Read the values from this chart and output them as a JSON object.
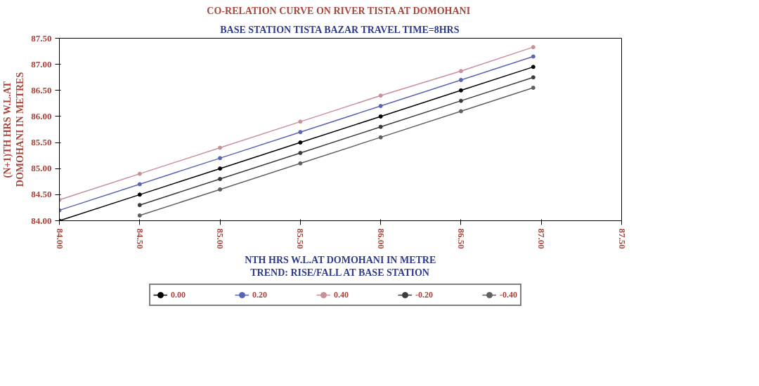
{
  "chart_data": {
    "type": "line",
    "title": "CO-RELATION CURVE ON RIVER TISTA AT  DOMOHANI",
    "subtitle": "BASE STATION TISTA BAZAR TRAVEL TIME=8HRS",
    "xlabel": "NTH HRS W.L.AT DOMOHANI IN METRE\nTREND: RISE/FALL AT BASE STATION",
    "ylabel": "(N+1)TH HRS W.L.AT DOMOHANI IN METRES",
    "xlim": [
      84,
      87.5
    ],
    "ylim": [
      84,
      87.5
    ],
    "xticks": [
      {
        "value": 84,
        "label": "84.00"
      },
      {
        "value": 84.5,
        "label": "84.50"
      },
      {
        "value": 85,
        "label": "85.00"
      },
      {
        "value": 85.5,
        "label": "85.50"
      },
      {
        "value": 86,
        "label": "86.00"
      },
      {
        "value": 86.5,
        "label": "86.50"
      },
      {
        "value": 87,
        "label": "87.00"
      },
      {
        "value": 87.5,
        "label": "87.50"
      }
    ],
    "yticks": [
      {
        "value": 84,
        "label": "84.00"
      },
      {
        "value": 84.5,
        "label": "84.50"
      },
      {
        "value": 85,
        "label": "85.00"
      },
      {
        "value": 85.5,
        "label": "85.50"
      },
      {
        "value": 86,
        "label": "86.00"
      },
      {
        "value": 86.5,
        "label": "86.50"
      },
      {
        "value": 87,
        "label": "87.00"
      },
      {
        "value": 87.5,
        "label": "87.50"
      }
    ],
    "grid": false,
    "legend": "bottom",
    "marker": "circle",
    "line_style": "solid",
    "series": [
      {
        "name": "0.00",
        "color": "#000000",
        "x": [
          84,
          84.5,
          85,
          85.5,
          86,
          86.5,
          86.95
        ],
        "values": [
          84.0,
          84.5,
          85.0,
          85.5,
          86.0,
          86.5,
          86.95
        ]
      },
      {
        "name": "0.20",
        "color": "#5a64b4",
        "x": [
          84,
          84.5,
          85,
          85.5,
          86,
          86.5,
          86.95
        ],
        "values": [
          84.2,
          84.7,
          85.2,
          85.7,
          86.2,
          86.7,
          87.15
        ]
      },
      {
        "name": "0.40",
        "color": "#c89098",
        "x": [
          84,
          84.5,
          85,
          85.5,
          86,
          86.5,
          86.95
        ],
        "values": [
          84.4,
          84.9,
          85.4,
          85.9,
          86.4,
          86.87,
          87.33
        ]
      },
      {
        "name": "-0.20",
        "color": "#3c3c3c",
        "x": [
          84.5,
          85,
          85.5,
          86,
          86.5,
          86.95
        ],
        "values": [
          84.3,
          84.8,
          85.3,
          85.8,
          86.3,
          86.75
        ]
      },
      {
        "name": "-0.40",
        "color": "#606060",
        "x": [
          84.5,
          85,
          85.5,
          86,
          86.5,
          86.95
        ],
        "values": [
          84.1,
          84.6,
          85.1,
          85.6,
          86.1,
          86.55
        ]
      }
    ]
  }
}
